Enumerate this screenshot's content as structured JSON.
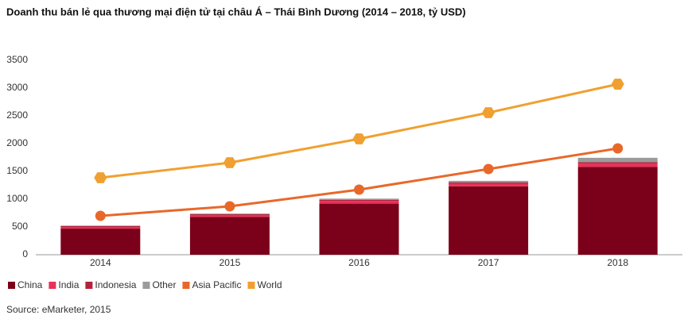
{
  "chart_data": {
    "type": "bar",
    "stacked": true,
    "title": "Doanh thu bán lẻ qua thương mại điện tử tại châu Á – Thái Bình Dương (2014 – 2018, tỷ USD)",
    "source": "Source: eMarketer, 2015",
    "categories": [
      "2014",
      "2015",
      "2016",
      "2017",
      "2018"
    ],
    "series": [
      {
        "name": "China",
        "color": "#7b0019",
        "values": [
          470,
          680,
          920,
          1230,
          1580
        ]
      },
      {
        "name": "India",
        "color": "#e8305a",
        "values": [
          30,
          35,
          50,
          50,
          60
        ]
      },
      {
        "name": "Indonesia",
        "color": "#b4213a",
        "values": [
          15,
          15,
          20,
          20,
          25
        ]
      },
      {
        "name": "Other",
        "color": "#9b9b9b",
        "values": [
          10,
          12,
          20,
          30,
          80
        ]
      },
      {
        "name": "Asia Pacific",
        "color": "#e8682a",
        "type": "line",
        "marker": "circle",
        "values": [
          700,
          871,
          1171,
          1543,
          1914
        ]
      },
      {
        "name": "World",
        "color": "#f0a030",
        "type": "line",
        "marker": "hexagon",
        "values": [
          1386,
          1657,
          2086,
          2557,
          3071
        ]
      }
    ],
    "ylim": [
      0,
      3500
    ],
    "yticks": [
      0,
      500,
      1000,
      1500,
      2000,
      2500,
      3000,
      3500
    ],
    "grid": false
  }
}
